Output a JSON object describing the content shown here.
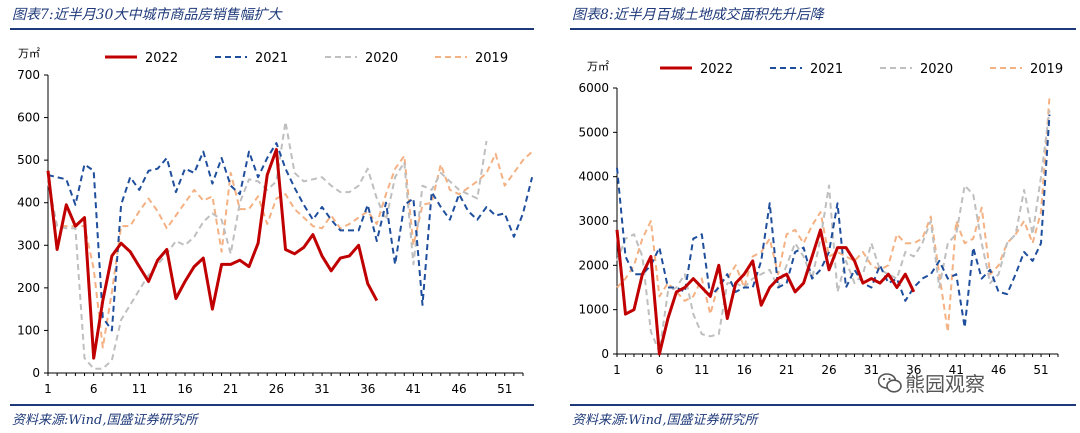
{
  "colors": {
    "brand": "#1f3a7a",
    "s2022": "#c00000",
    "s2021": "#1f4e9c",
    "s2020": "#bfbfbf",
    "s2019": "#f4b183"
  },
  "panel1": {
    "title": "图表7:近半月30大中城市商品房销售幅扩大",
    "source": "资料来源:Wind,国盛证券研究所",
    "unit": "万㎡"
  },
  "panel2": {
    "title": "图表8:近半月百城土地成交面积先升后降",
    "source": "资料来源:Wind,国盛证券研究所",
    "unit": "万㎡"
  },
  "watermark": "熊园观察",
  "chart_data": [
    {
      "type": "line",
      "title": "图表7:近半月30大中城市商品房销售幅扩大",
      "ylabel": "万㎡",
      "xlim": [
        1,
        53
      ],
      "ylim": [
        0,
        700
      ],
      "yticks": [
        0,
        100,
        200,
        300,
        400,
        500,
        600,
        700
      ],
      "xticks": [
        1,
        6,
        11,
        16,
        21,
        26,
        31,
        36,
        41,
        46,
        51
      ],
      "legend": "top",
      "grid": false,
      "series": [
        {
          "name": "2022",
          "style": "solid",
          "color": "#c00000",
          "values": [
            475,
            290,
            395,
            345,
            365,
            35,
            170,
            275,
            305,
            285,
            250,
            215,
            265,
            290,
            175,
            215,
            250,
            270,
            150,
            255,
            255,
            265,
            250,
            305,
            465,
            525,
            290,
            280,
            295,
            325,
            275,
            240,
            270,
            275,
            300,
            210,
            170
          ]
        },
        {
          "name": "2021",
          "style": "dashed",
          "color": "#1f4e9c",
          "values": [
            465,
            460,
            455,
            395,
            490,
            475,
            130,
            100,
            395,
            460,
            430,
            475,
            480,
            505,
            425,
            480,
            470,
            520,
            445,
            505,
            440,
            420,
            520,
            460,
            505,
            540,
            480,
            435,
            395,
            360,
            390,
            360,
            335,
            335,
            335,
            395,
            310,
            400,
            255,
            395,
            410,
            160,
            425,
            390,
            360,
            420,
            380,
            360,
            390,
            370,
            375,
            320,
            375,
            460
          ]
        },
        {
          "name": "2020",
          "style": "dashed",
          "color": "#bfbfbf",
          "values": [
            450,
            345,
            340,
            340,
            35,
            10,
            10,
            30,
            125,
            160,
            195,
            230,
            255,
            280,
            310,
            300,
            320,
            355,
            375,
            360,
            280,
            400,
            455,
            450,
            430,
            450,
            590,
            470,
            450,
            455,
            460,
            440,
            425,
            425,
            440,
            480,
            410,
            360,
            460,
            495,
            255,
            440,
            430,
            470,
            450,
            430,
            420,
            410,
            545
          ]
        },
        {
          "name": "2019",
          "style": "dashed",
          "color": "#f4b183",
          "values": [
            450,
            345,
            345,
            345,
            345,
            245,
            60,
            190,
            345,
            345,
            380,
            410,
            380,
            340,
            370,
            400,
            430,
            405,
            415,
            285,
            470,
            385,
            385,
            415,
            350,
            410,
            420,
            385,
            365,
            345,
            340,
            370,
            340,
            350,
            365,
            380,
            350,
            420,
            480,
            510,
            300,
            395,
            400,
            490,
            430,
            420,
            435,
            450,
            470,
            515,
            440,
            470,
            500,
            520
          ]
        }
      ]
    },
    {
      "type": "line",
      "title": "图表8:近半月百城土地成交面积先升后降",
      "ylabel": "万㎡",
      "xlim": [
        1,
        53
      ],
      "ylim": [
        0,
        6000
      ],
      "yticks": [
        0,
        1000,
        2000,
        3000,
        4000,
        5000,
        6000
      ],
      "xticks": [
        1,
        6,
        11,
        16,
        21,
        26,
        31,
        36,
        41,
        46,
        51
      ],
      "legend": "top",
      "grid": false,
      "series": [
        {
          "name": "2022",
          "style": "solid",
          "color": "#c00000",
          "values": [
            2800,
            900,
            1000,
            1800,
            2200,
            0,
            800,
            1400,
            1500,
            1700,
            1500,
            1300,
            2000,
            800,
            1600,
            1800,
            2100,
            1100,
            1500,
            1700,
            1800,
            1400,
            1600,
            2200,
            2800,
            1900,
            2400,
            2400,
            2100,
            1600,
            1700,
            1600,
            1800,
            1500,
            1800,
            1400
          ]
        },
        {
          "name": "2021",
          "style": "dashed",
          "color": "#1f4e9c",
          "values": [
            4200,
            2200,
            1800,
            1800,
            2000,
            2400,
            1500,
            1500,
            1400,
            2600,
            2700,
            1300,
            1500,
            1800,
            1400,
            1500,
            1500,
            2100,
            3400,
            1500,
            1600,
            2300,
            2400,
            1700,
            1900,
            2300,
            3400,
            1500,
            1900,
            1600,
            1500,
            2000,
            1600,
            1700,
            1200,
            1500,
            1700,
            1800,
            2100,
            1700,
            1800,
            600,
            2400,
            1700,
            1900,
            1400,
            1350,
            1800,
            2300,
            2100,
            2500,
            5400
          ]
        },
        {
          "name": "2020",
          "style": "dashed",
          "color": "#bfbfbf",
          "values": [
            2100,
            2600,
            2700,
            2200,
            500,
            50,
            1400,
            1500,
            1800,
            900,
            450,
            400,
            450,
            1600,
            1600,
            1500,
            1700,
            1800,
            1900,
            1500,
            2000,
            2500,
            2200,
            1700,
            2600,
            3800,
            1400,
            2100,
            1600,
            1800,
            2500,
            1900,
            1800,
            1700,
            2300,
            2200,
            2500,
            3000,
            1500,
            2500,
            2700,
            3800,
            3600,
            2500,
            1600,
            1800,
            2500,
            2700,
            3700,
            2700,
            4000,
            5500
          ]
        },
        {
          "name": "2019",
          "style": "dashed",
          "color": "#f4b183",
          "values": [
            1500,
            1700,
            2000,
            2600,
            3000,
            1300,
            1600,
            1400,
            1200,
            1300,
            1700,
            900,
            1600,
            1700,
            2000,
            1500,
            2200,
            2300,
            2600,
            1800,
            2700,
            2800,
            2500,
            2900,
            3200,
            2200,
            2300,
            2200,
            2100,
            2300,
            2000,
            1900,
            2000,
            2700,
            2500,
            2500,
            2600,
            3100,
            1800,
            500,
            3000,
            2500,
            2600,
            3300,
            1800,
            2000,
            2500,
            2700,
            3000,
            2500,
            3200,
            5800
          ]
        }
      ]
    }
  ]
}
